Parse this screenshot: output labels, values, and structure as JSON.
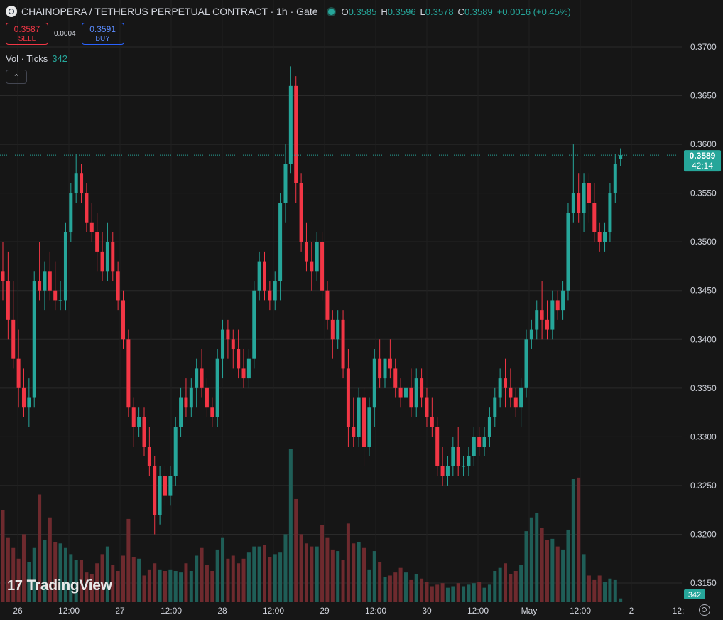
{
  "header": {
    "title": "CHAINOPERA / TETHERUS PERPETUAL CONTRACT · 1h · Gate",
    "ohlc": {
      "o_label": "O",
      "o": "0.3585",
      "h_label": "H",
      "h": "0.3596",
      "l_label": "L",
      "l": "0.3578",
      "c_label": "C",
      "c": "0.3589",
      "change": "+0.0016 (+0.45%)"
    }
  },
  "trade": {
    "sell_price": "0.3587",
    "sell_label": "SELL",
    "spread": "0.0004",
    "buy_price": "0.3591",
    "buy_label": "BUY"
  },
  "volume_legend": {
    "label": "Vol · Ticks",
    "value": "342"
  },
  "collapse_icon": "chevron-up-icon",
  "branding": {
    "mark": "17",
    "text": "TradingView"
  },
  "colors": {
    "up": "#26a69a",
    "down": "#f23645",
    "up_vol": "#1f5e57",
    "down_vol": "#6e2a2e",
    "background": "#161616",
    "grid": "#2a2a2a"
  },
  "price_axis": {
    "labels": [
      "0.3700",
      "0.3650",
      "0.3600",
      "0.3550",
      "0.3500",
      "0.3450",
      "0.3400",
      "0.3350",
      "0.3300",
      "0.3250",
      "0.3200",
      "0.3150"
    ],
    "last_price": "0.3589",
    "countdown": "42:14",
    "volume_badge": "342"
  },
  "time_axis": {
    "labels": [
      "26",
      "12:00",
      "27",
      "12:00",
      "28",
      "12:00",
      "29",
      "12:00",
      "30",
      "12:00",
      "May",
      "12:00",
      "2",
      "12:"
    ]
  },
  "chart_data": {
    "type": "candlestick",
    "symbol": "CHAINOPERA / TETHERUS PERPETUAL CONTRACT",
    "interval": "1h",
    "exchange": "Gate",
    "ylim": [
      0.3125,
      0.3725
    ],
    "last_price": 0.3589,
    "grid": true,
    "candles": [
      [
        0.347,
        0.35,
        0.344,
        0.346,
        60
      ],
      [
        0.346,
        0.349,
        0.34,
        0.342,
        42
      ],
      [
        0.342,
        0.346,
        0.337,
        0.338,
        35
      ],
      [
        0.338,
        0.341,
        0.333,
        0.335,
        28
      ],
      [
        0.335,
        0.337,
        0.332,
        0.333,
        44
      ],
      [
        0.333,
        0.336,
        0.331,
        0.334,
        26
      ],
      [
        0.334,
        0.347,
        0.333,
        0.346,
        35
      ],
      [
        0.346,
        0.35,
        0.344,
        0.345,
        70
      ],
      [
        0.345,
        0.348,
        0.343,
        0.347,
        40
      ],
      [
        0.347,
        0.349,
        0.344,
        0.345,
        55
      ],
      [
        0.345,
        0.348,
        0.343,
        0.344,
        39
      ],
      [
        0.344,
        0.346,
        0.343,
        0.344,
        38
      ],
      [
        0.344,
        0.352,
        0.343,
        0.351,
        35
      ],
      [
        0.351,
        0.356,
        0.35,
        0.355,
        31
      ],
      [
        0.355,
        0.359,
        0.354,
        0.357,
        27
      ],
      [
        0.357,
        0.358,
        0.354,
        0.355,
        27
      ],
      [
        0.355,
        0.356,
        0.351,
        0.352,
        19
      ],
      [
        0.352,
        0.354,
        0.35,
        0.351,
        18
      ],
      [
        0.351,
        0.353,
        0.347,
        0.349,
        25
      ],
      [
        0.349,
        0.351,
        0.346,
        0.347,
        31
      ],
      [
        0.347,
        0.352,
        0.346,
        0.35,
        36
      ],
      [
        0.35,
        0.351,
        0.346,
        0.347,
        24
      ],
      [
        0.347,
        0.348,
        0.343,
        0.344,
        20
      ],
      [
        0.344,
        0.345,
        0.339,
        0.34,
        30
      ],
      [
        0.34,
        0.341,
        0.332,
        0.333,
        54
      ],
      [
        0.333,
        0.334,
        0.329,
        0.331,
        29
      ],
      [
        0.331,
        0.333,
        0.33,
        0.332,
        28
      ],
      [
        0.332,
        0.333,
        0.328,
        0.329,
        17
      ],
      [
        0.329,
        0.331,
        0.326,
        0.327,
        21
      ],
      [
        0.327,
        0.328,
        0.32,
        0.322,
        25
      ],
      [
        0.322,
        0.327,
        0.321,
        0.326,
        21
      ],
      [
        0.326,
        0.327,
        0.323,
        0.324,
        20
      ],
      [
        0.324,
        0.327,
        0.323,
        0.326,
        21
      ],
      [
        0.326,
        0.332,
        0.325,
        0.331,
        20
      ],
      [
        0.331,
        0.335,
        0.33,
        0.334,
        19
      ],
      [
        0.334,
        0.336,
        0.332,
        0.333,
        25
      ],
      [
        0.333,
        0.336,
        0.332,
        0.335,
        20
      ],
      [
        0.335,
        0.338,
        0.333,
        0.337,
        30
      ],
      [
        0.337,
        0.339,
        0.334,
        0.335,
        35
      ],
      [
        0.335,
        0.336,
        0.332,
        0.333,
        24
      ],
      [
        0.333,
        0.334,
        0.331,
        0.332,
        20
      ],
      [
        0.332,
        0.339,
        0.331,
        0.338,
        34
      ],
      [
        0.338,
        0.342,
        0.336,
        0.341,
        42
      ],
      [
        0.341,
        0.342,
        0.338,
        0.34,
        28
      ],
      [
        0.34,
        0.341,
        0.337,
        0.339,
        30
      ],
      [
        0.339,
        0.341,
        0.336,
        0.337,
        25
      ],
      [
        0.337,
        0.339,
        0.335,
        0.336,
        28
      ],
      [
        0.336,
        0.339,
        0.335,
        0.338,
        32
      ],
      [
        0.338,
        0.346,
        0.337,
        0.345,
        36
      ],
      [
        0.345,
        0.349,
        0.344,
        0.348,
        36
      ],
      [
        0.348,
        0.349,
        0.344,
        0.345,
        37
      ],
      [
        0.345,
        0.346,
        0.343,
        0.344,
        29
      ],
      [
        0.344,
        0.347,
        0.343,
        0.346,
        31
      ],
      [
        0.346,
        0.355,
        0.344,
        0.354,
        32
      ],
      [
        0.354,
        0.36,
        0.352,
        0.358,
        44
      ],
      [
        0.358,
        0.368,
        0.357,
        0.366,
        100
      ],
      [
        0.366,
        0.367,
        0.354,
        0.356,
        67
      ],
      [
        0.356,
        0.357,
        0.349,
        0.35,
        44
      ],
      [
        0.35,
        0.352,
        0.347,
        0.348,
        38
      ],
      [
        0.348,
        0.35,
        0.345,
        0.347,
        36
      ],
      [
        0.347,
        0.351,
        0.346,
        0.35,
        36
      ],
      [
        0.35,
        0.351,
        0.344,
        0.345,
        50
      ],
      [
        0.345,
        0.346,
        0.341,
        0.342,
        42
      ],
      [
        0.342,
        0.343,
        0.338,
        0.34,
        34
      ],
      [
        0.34,
        0.343,
        0.339,
        0.342,
        33
      ],
      [
        0.342,
        0.343,
        0.336,
        0.337,
        27
      ],
      [
        0.337,
        0.339,
        0.329,
        0.331,
        51
      ],
      [
        0.331,
        0.334,
        0.329,
        0.33,
        38
      ],
      [
        0.33,
        0.335,
        0.329,
        0.334,
        39
      ],
      [
        0.334,
        0.335,
        0.327,
        0.329,
        35
      ],
      [
        0.329,
        0.334,
        0.328,
        0.333,
        21
      ],
      [
        0.333,
        0.339,
        0.331,
        0.338,
        33
      ],
      [
        0.338,
        0.34,
        0.335,
        0.336,
        26
      ],
      [
        0.336,
        0.338,
        0.335,
        0.338,
        16
      ],
      [
        0.338,
        0.34,
        0.336,
        0.337,
        17
      ],
      [
        0.337,
        0.338,
        0.334,
        0.335,
        19
      ],
      [
        0.335,
        0.336,
        0.333,
        0.334,
        22
      ],
      [
        0.334,
        0.336,
        0.333,
        0.335,
        19
      ],
      [
        0.335,
        0.337,
        0.332,
        0.333,
        14
      ],
      [
        0.333,
        0.337,
        0.332,
        0.336,
        18
      ],
      [
        0.336,
        0.337,
        0.333,
        0.334,
        15
      ],
      [
        0.334,
        0.335,
        0.331,
        0.332,
        13
      ],
      [
        0.332,
        0.334,
        0.33,
        0.331,
        10
      ],
      [
        0.331,
        0.332,
        0.326,
        0.327,
        11
      ],
      [
        0.327,
        0.329,
        0.325,
        0.326,
        12
      ],
      [
        0.326,
        0.328,
        0.325,
        0.327,
        9
      ],
      [
        0.327,
        0.33,
        0.326,
        0.329,
        10
      ],
      [
        0.329,
        0.331,
        0.326,
        0.327,
        12
      ],
      [
        0.327,
        0.328,
        0.326,
        0.327,
        10
      ],
      [
        0.327,
        0.329,
        0.326,
        0.328,
        11
      ],
      [
        0.328,
        0.331,
        0.327,
        0.33,
        12
      ],
      [
        0.33,
        0.331,
        0.328,
        0.329,
        13
      ],
      [
        0.329,
        0.331,
        0.328,
        0.33,
        9
      ],
      [
        0.33,
        0.333,
        0.329,
        0.332,
        11
      ],
      [
        0.332,
        0.335,
        0.331,
        0.334,
        20
      ],
      [
        0.334,
        0.337,
        0.333,
        0.336,
        22
      ],
      [
        0.336,
        0.338,
        0.333,
        0.335,
        25
      ],
      [
        0.335,
        0.337,
        0.333,
        0.334,
        18
      ],
      [
        0.334,
        0.335,
        0.332,
        0.333,
        20
      ],
      [
        0.333,
        0.336,
        0.331,
        0.335,
        24
      ],
      [
        0.335,
        0.341,
        0.334,
        0.34,
        46
      ],
      [
        0.34,
        0.342,
        0.339,
        0.341,
        55
      ],
      [
        0.341,
        0.344,
        0.34,
        0.343,
        58
      ],
      [
        0.343,
        0.346,
        0.34,
        0.342,
        48
      ],
      [
        0.342,
        0.344,
        0.34,
        0.341,
        40
      ],
      [
        0.341,
        0.345,
        0.34,
        0.344,
        41
      ],
      [
        0.344,
        0.345,
        0.342,
        0.343,
        36
      ],
      [
        0.343,
        0.346,
        0.342,
        0.345,
        34
      ],
      [
        0.345,
        0.354,
        0.344,
        0.353,
        47
      ],
      [
        0.353,
        0.36,
        0.352,
        0.355,
        80
      ],
      [
        0.355,
        0.357,
        0.352,
        0.353,
        81
      ],
      [
        0.353,
        0.357,
        0.351,
        0.356,
        31
      ],
      [
        0.356,
        0.357,
        0.352,
        0.354,
        17
      ],
      [
        0.354,
        0.356,
        0.35,
        0.351,
        14
      ],
      [
        0.351,
        0.352,
        0.349,
        0.35,
        17
      ],
      [
        0.35,
        0.352,
        0.349,
        0.351,
        13
      ],
      [
        0.351,
        0.356,
        0.35,
        0.355,
        15
      ],
      [
        0.355,
        0.359,
        0.354,
        0.358,
        14
      ],
      [
        0.3585,
        0.3596,
        0.3578,
        0.3589,
        2
      ]
    ]
  }
}
